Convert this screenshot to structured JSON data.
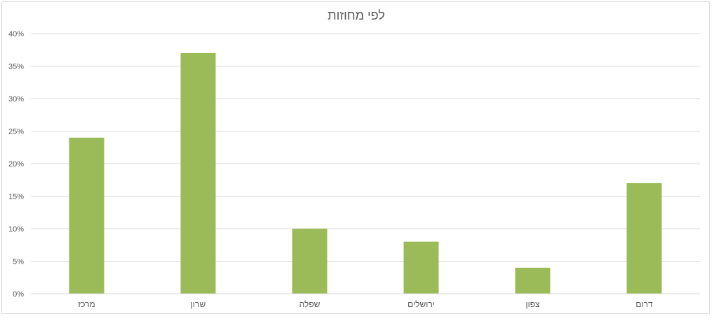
{
  "chart_data": {
    "type": "bar",
    "title": "לפי מחוזות",
    "categories": [
      "מרכז",
      "שרון",
      "שפלה",
      "ירושלים",
      "צפון",
      "דרום"
    ],
    "values": [
      24,
      37,
      10,
      8,
      4,
      17
    ],
    "ylim": [
      0,
      40
    ],
    "y_ticks": [
      "0%",
      "5%",
      "10%",
      "15%",
      "20%",
      "25%",
      "30%",
      "35%",
      "40%"
    ],
    "grid": true,
    "legend": "none",
    "bar_color": "#9bbb59",
    "grid_color": "#d9d9d9",
    "text_color": "#595959"
  }
}
